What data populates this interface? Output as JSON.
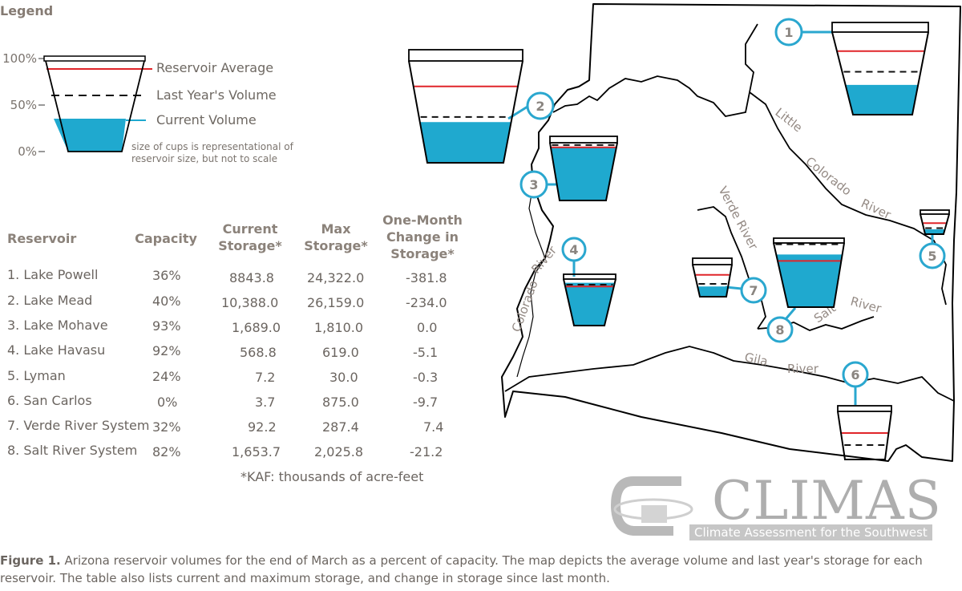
{
  "legend": {
    "title": "Legend",
    "pct_100": "100%",
    "pct_50": "50%",
    "pct_0": "0%",
    "avg_label": "Reservoir Average",
    "last_year_label": "Last Year's Volume",
    "current_label": "Current Volume",
    "note": "size of cups is representational of reservoir size, but not to scale"
  },
  "table": {
    "headers": [
      "Reservoir",
      "Capacity",
      "Current Storage*",
      "Max Storage*",
      "One-Month Change in Storage*"
    ],
    "rows": [
      [
        "1. Lake Powell",
        "36%",
        "8843.8",
        "24,322.0",
        "-381.8"
      ],
      [
        "2. Lake Mead",
        "40%",
        "10,388.0",
        "26,159.0",
        "-234.0"
      ],
      [
        "3. Lake Mohave",
        "93%",
        "1,689.0",
        "1,810.0",
        "0.0"
      ],
      [
        "4. Lake Havasu",
        "92%",
        "568.8",
        "619.0",
        "-5.1"
      ],
      [
        "5. Lyman",
        "24%",
        "7.2",
        "30.0",
        "-0.3"
      ],
      [
        "6. San Carlos",
        "0%",
        "3.7",
        "875.0",
        "-9.7"
      ],
      [
        "7. Verde River System",
        "32%",
        "92.2",
        "287.4",
        "7.4"
      ],
      [
        "8. Salt River System",
        "82%",
        "1,653.7",
        "2,025.8",
        "-21.2"
      ]
    ],
    "footnote": "*KAF: thousands of acre-feet"
  },
  "map": {
    "rivers": {
      "little": "Little",
      "colorado_ne": "Colorado",
      "river_ne": "River",
      "colorado_w": "Colorado",
      "river_w": "River",
      "verde": "Verde River",
      "salt": "Salt",
      "salt_river": "River",
      "gila": "Gila",
      "gila_river": "River"
    },
    "markers": [
      "1",
      "2",
      "3",
      "4",
      "5",
      "6",
      "7",
      "8"
    ],
    "cup_levels": [
      {
        "marker": "1",
        "current": 0.36,
        "average": 0.77,
        "last_year": 0.52
      },
      {
        "marker": "2",
        "current": 0.4,
        "average": 0.75,
        "last_year": 0.45
      },
      {
        "marker": "3",
        "current": 0.93,
        "average": 0.92,
        "last_year": 0.96
      },
      {
        "marker": "4",
        "current": 0.92,
        "average": 0.84,
        "last_year": 0.88
      },
      {
        "marker": "5",
        "current": 0.24,
        "average": 0.55,
        "last_year": 0.3
      },
      {
        "marker": "6",
        "current": 0.0,
        "average": 0.55,
        "last_year": 0.3
      },
      {
        "marker": "7",
        "current": 0.32,
        "average": 0.68,
        "last_year": 0.4
      },
      {
        "marker": "8",
        "current": 0.82,
        "average": 0.72,
        "last_year": 0.98
      }
    ]
  },
  "logo": {
    "name": "CLIMAS",
    "tagline": "Climate Assessment for the Southwest"
  },
  "caption": {
    "label": "Figure 1.",
    "text": "Arizona reservoir volumes for the end of March as a percent of capacity. The map depicts the average volume and last year's storage for each reservoir. The table also lists current and maximum storage, and change in storage since last month."
  },
  "colors": {
    "water": "#1fa9cf",
    "average_line": "#e0252a",
    "marker_ring": "#2aa7cf",
    "outline": "#000000"
  }
}
